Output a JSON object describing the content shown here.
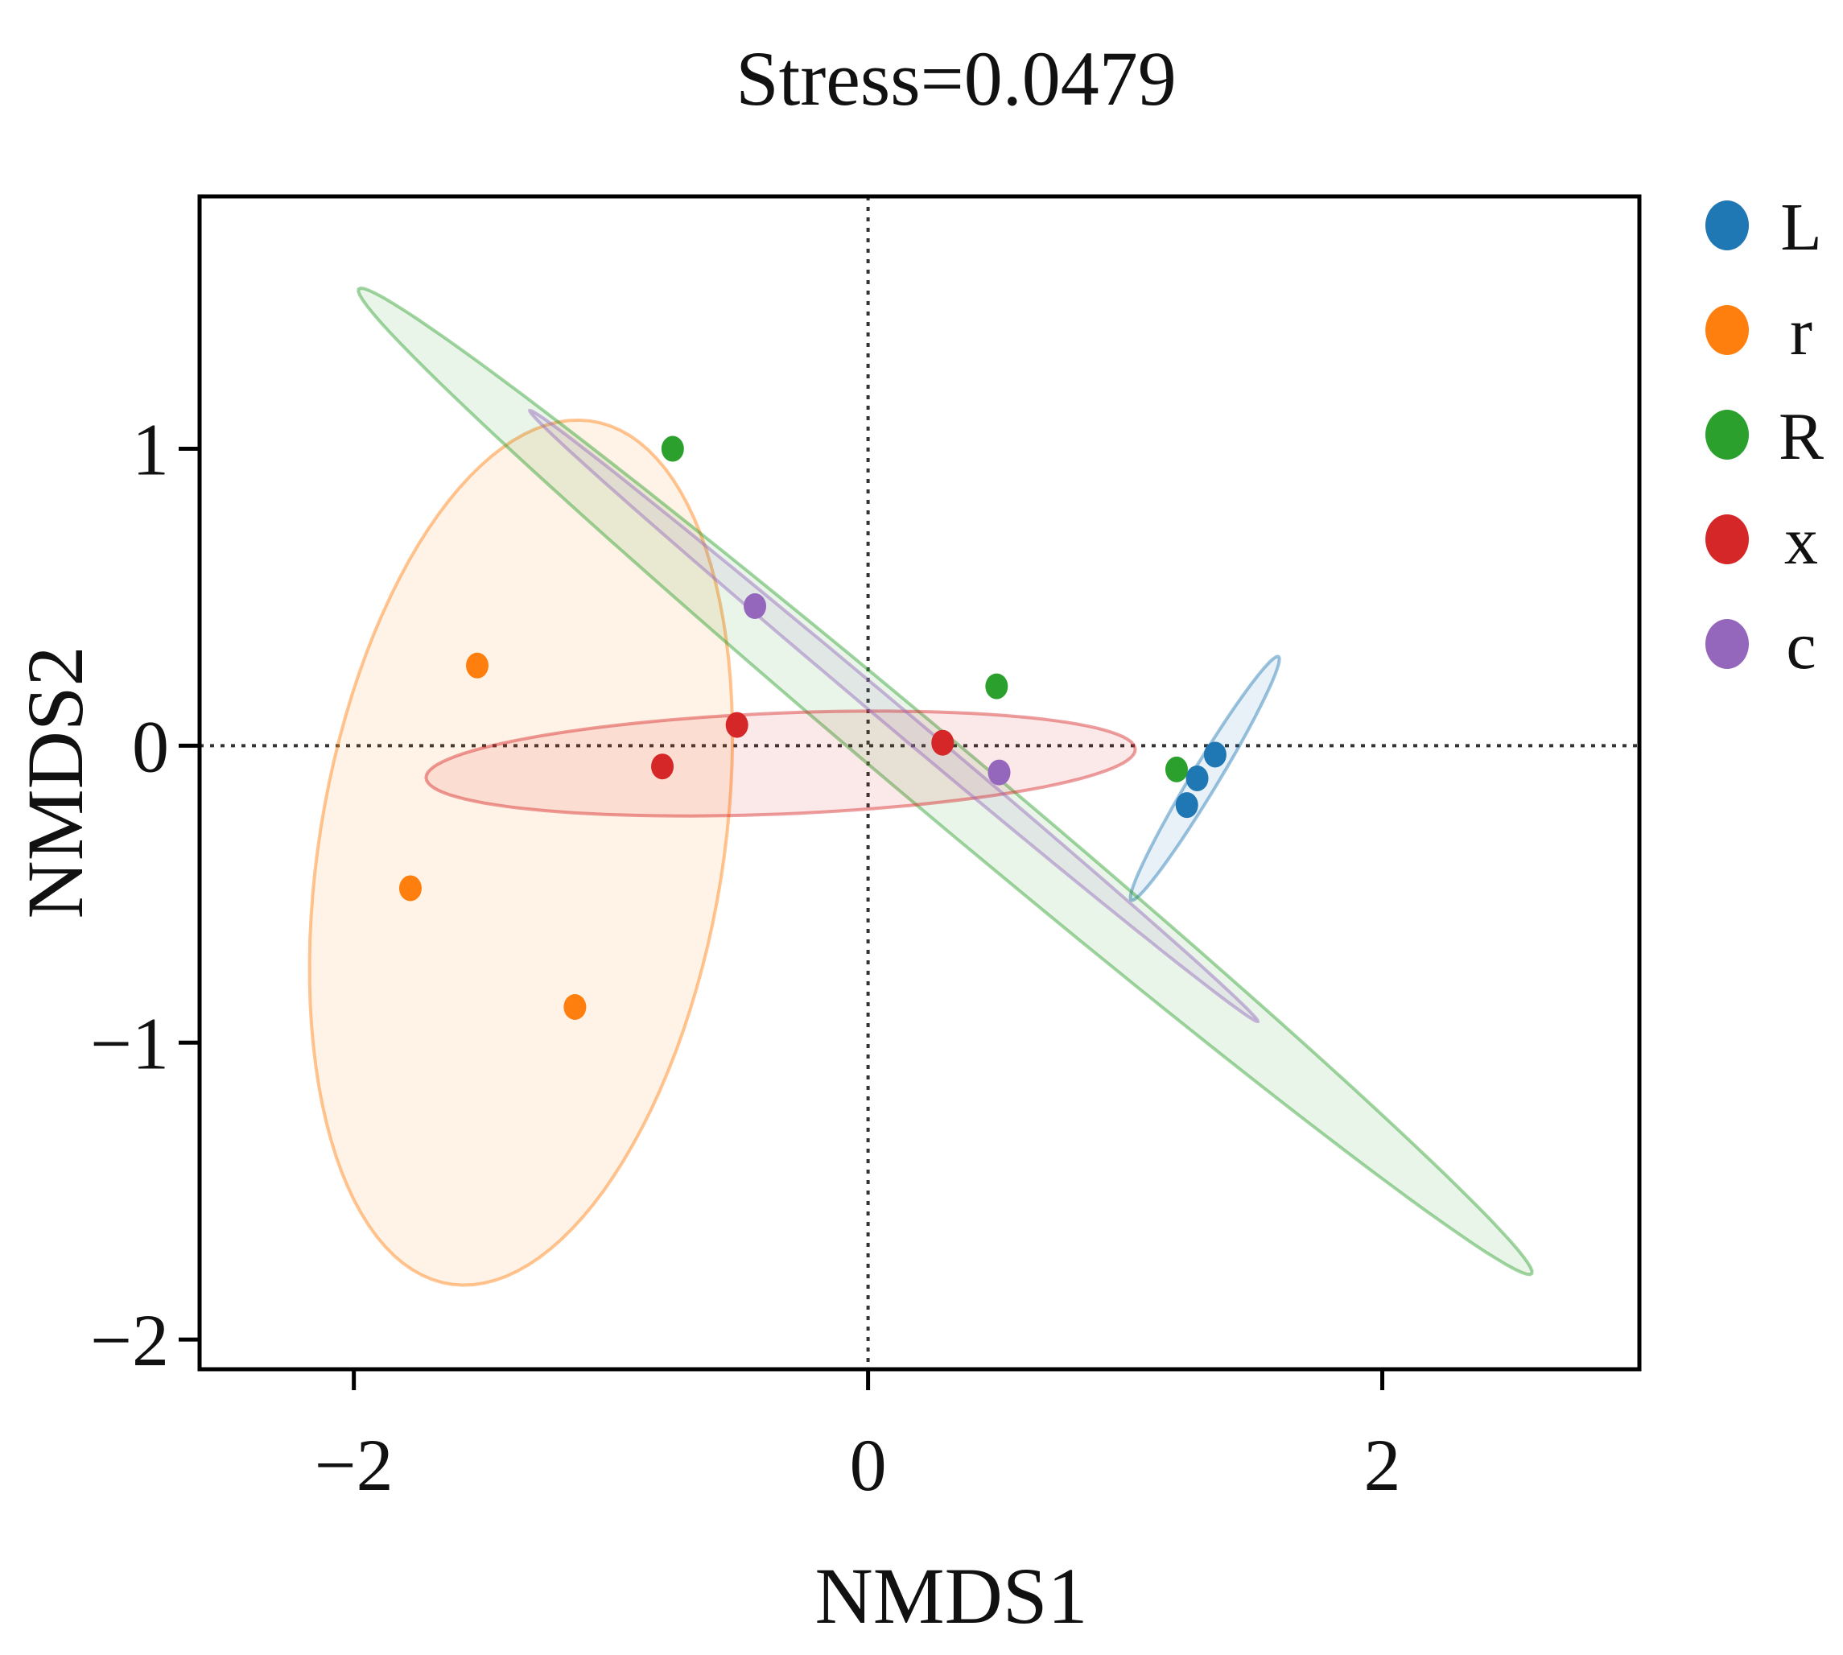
{
  "chart_data": {
    "type": "scatter",
    "title": "Stress=0.0479",
    "xlabel": "NMDS1",
    "ylabel": "NMDS2",
    "xlim": [
      -2.6,
      3.0
    ],
    "ylim": [
      -2.1,
      1.85
    ],
    "xticks": [
      -2,
      0,
      2
    ],
    "yticks": [
      -2,
      -1,
      0,
      1
    ],
    "xtick_labels": [
      "−2",
      "0",
      "2"
    ],
    "ytick_labels": [
      "−2",
      "−1",
      "0",
      "1"
    ],
    "reference_lines": {
      "x": 0,
      "y": 0,
      "style": "dotted"
    },
    "grid": false,
    "legend_position": "right",
    "series": [
      {
        "name": "L",
        "color": "#1f77b4",
        "points": [
          [
            1.35,
            -0.03
          ],
          [
            1.28,
            -0.11
          ],
          [
            1.24,
            -0.2
          ]
        ],
        "ellipse": {
          "center": [
            1.31,
            -0.11
          ],
          "semi_major": 0.5,
          "semi_minor": 0.05,
          "angle_deg": 55
        }
      },
      {
        "name": "r",
        "color": "#ff7f0e",
        "points": [
          [
            -1.52,
            0.27
          ],
          [
            -1.78,
            -0.48
          ],
          [
            -1.14,
            -0.88
          ]
        ],
        "ellipse": {
          "center": [
            -1.35,
            -0.36
          ],
          "semi_major": 1.48,
          "semi_minor": 0.78,
          "angle_deg": 78
        }
      },
      {
        "name": "R",
        "color": "#2ca02c",
        "points": [
          [
            -0.76,
            1.0
          ],
          [
            0.5,
            0.2
          ],
          [
            1.2,
            -0.08
          ]
        ],
        "ellipse": {
          "center": [
            0.3,
            -0.12
          ],
          "semi_major": 2.82,
          "semi_minor": 0.13,
          "angle_deg": -36
        }
      },
      {
        "name": "x",
        "color": "#d62728",
        "points": [
          [
            -0.8,
            -0.07
          ],
          [
            -0.51,
            0.07
          ],
          [
            0.29,
            0.01
          ]
        ],
        "ellipse": {
          "center": [
            -0.34,
            -0.06
          ],
          "semi_major": 1.38,
          "semi_minor": 0.17,
          "angle_deg": 2
        }
      },
      {
        "name": "c",
        "color": "#9467bd",
        "points": [
          [
            -0.44,
            0.47
          ],
          [
            0.51,
            -0.09
          ]
        ],
        "ellipse": {
          "center": [
            0.1,
            0.1
          ],
          "semi_major": 1.75,
          "semi_minor": 0.04,
          "angle_deg": -36
        }
      }
    ]
  }
}
